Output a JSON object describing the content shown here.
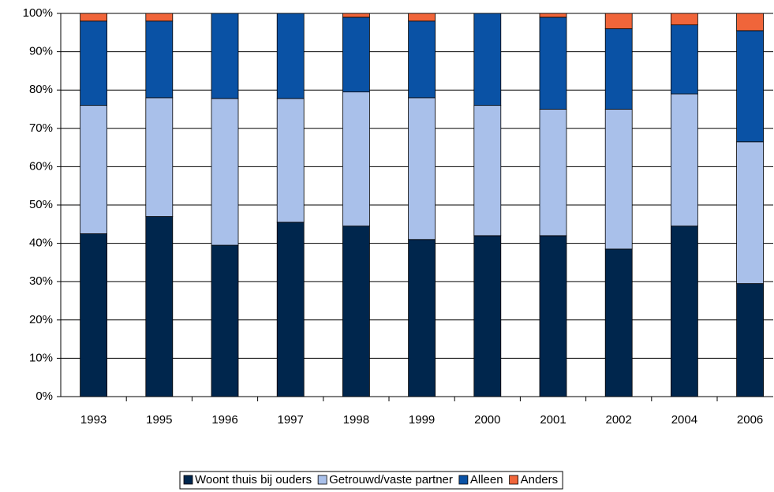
{
  "chart_data": {
    "type": "stacked_bar",
    "categories": [
      "1993",
      "1995",
      "1996",
      "1997",
      "1998",
      "1999",
      "2000",
      "2001",
      "2002",
      "2004",
      "2006"
    ],
    "series": [
      {
        "name": "Woont thuis bij ouders",
        "color": "#00264d",
        "values": [
          42.5,
          47,
          39.5,
          45.5,
          44.5,
          41,
          42,
          42,
          38.5,
          44.5,
          29.5
        ]
      },
      {
        "name": "Getrouwd/vaste partner",
        "color": "#a9c0ea",
        "values": [
          33.5,
          31,
          38.3,
          32.3,
          35,
          37,
          34,
          33,
          36.5,
          34.5,
          37
        ]
      },
      {
        "name": "Alleen",
        "color": "#0a52a5",
        "values": [
          22,
          20,
          22.2,
          22.2,
          19.5,
          20,
          24,
          24,
          21,
          18,
          29
        ]
      },
      {
        "name": "Anders",
        "color": "#f0653a",
        "values": [
          2,
          2,
          0,
          0,
          1,
          2,
          0,
          1,
          4,
          3,
          4.5
        ]
      }
    ],
    "ylim": [
      0,
      100
    ],
    "yticks": [
      {
        "value": 0,
        "label": "0%"
      },
      {
        "value": 10,
        "label": "10%"
      },
      {
        "value": 20,
        "label": "20%"
      },
      {
        "value": 30,
        "label": "30%"
      },
      {
        "value": 40,
        "label": "40%"
      },
      {
        "value": 50,
        "label": "50%"
      },
      {
        "value": 60,
        "label": "60%"
      },
      {
        "value": 70,
        "label": "70%"
      },
      {
        "value": 80,
        "label": "80%"
      },
      {
        "value": 90,
        "label": "90%"
      },
      {
        "value": 100,
        "label": "100%"
      }
    ],
    "grid": true,
    "legend": "bottom"
  }
}
